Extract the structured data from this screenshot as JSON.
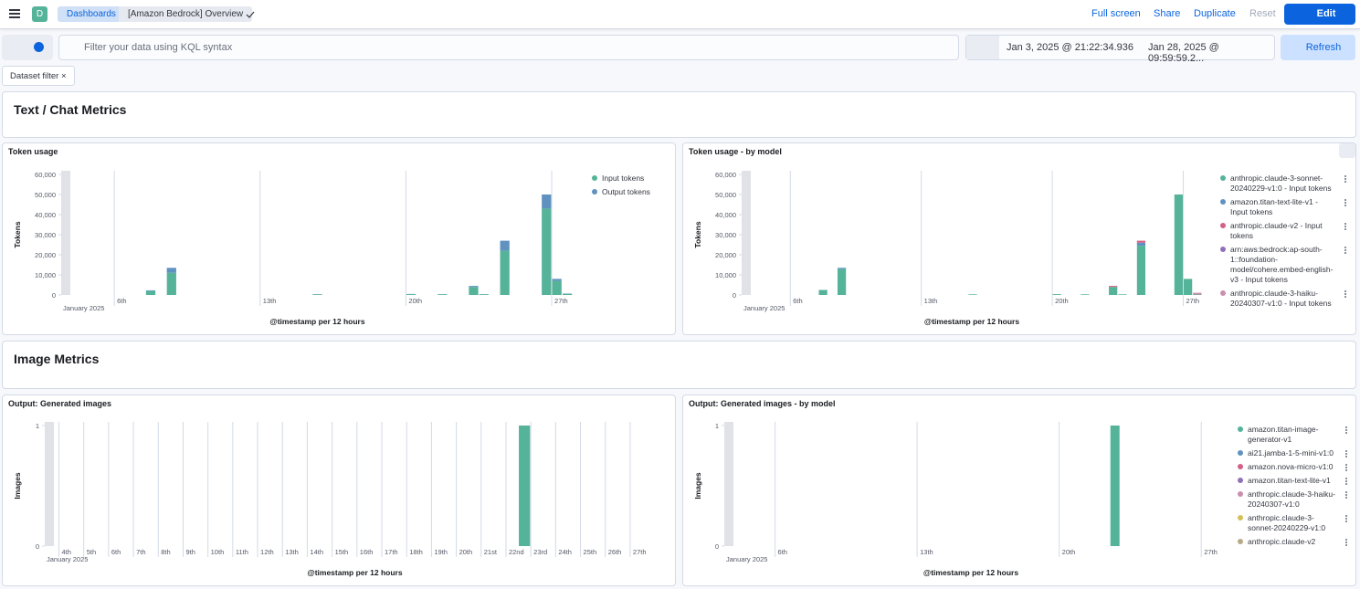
{
  "header": {
    "logo": "D",
    "breadcrumbs": [
      "Dashboards",
      "[Amazon Bedrock] Overview"
    ],
    "actions": [
      "Full screen",
      "Share",
      "Duplicate",
      "Reset"
    ],
    "edit": "Edit"
  },
  "query": {
    "placeholder": "Filter your data using KQL syntax",
    "start": "Jan 3, 2025 @ 21:22:34.936",
    "end": "Jan 28, 2025 @ 09:59:59.2...",
    "refresh": "Refresh",
    "filter": "Dataset filter"
  },
  "sections": [
    "Text / Chat Metrics",
    "Image Metrics"
  ],
  "chart_data": [
    {
      "type": "bar",
      "stacked": true,
      "title": "Token usage",
      "y_label": "Tokens",
      "x_label": "@timestamp per 12 hours",
      "x_sublabel": "January 2025",
      "x": [
        7.5,
        8.5,
        15.5,
        20,
        21.5,
        23,
        23.5,
        24.5,
        26.5,
        27,
        27.5
      ],
      "series": [
        {
          "name": "Input tokens",
          "color": "#54b399",
          "values": [
            2000,
            11000,
            300,
            400,
            300,
            4000,
            300,
            22000,
            43000,
            7000,
            500
          ]
        },
        {
          "name": "Output tokens",
          "color": "#6092c0",
          "values": [
            300,
            2500,
            100,
            100,
            100,
            500,
            100,
            5000,
            7000,
            1000,
            200
          ]
        }
      ],
      "xlim": [
        3.45,
        28.05
      ],
      "xticks": [
        {
          "value": 6,
          "label": "6th"
        },
        {
          "value": 13,
          "label": "13th"
        },
        {
          "value": 20,
          "label": "20th"
        },
        {
          "value": 27,
          "label": "27th"
        }
      ],
      "ylim": [
        0,
        60000
      ],
      "yticks": [
        0,
        {
          "value": 10000,
          "label": "10,000"
        },
        {
          "value": 20000,
          "label": "20,000"
        },
        {
          "value": 30000,
          "label": "30,000"
        },
        {
          "value": 40000,
          "label": "40,000"
        },
        {
          "value": 50000,
          "label": "50,000"
        },
        {
          "value": 60000,
          "label": "60,000"
        }
      ],
      "legend": "right"
    },
    {
      "type": "bar",
      "stacked": true,
      "title": "Token usage - by model",
      "y_label": "Tokens",
      "x_label": "@timestamp per 12 hours",
      "x_sublabel": "January 2025",
      "x": [
        7.5,
        8.5,
        15.5,
        20,
        21.5,
        23,
        23.5,
        24.5,
        26.5,
        27,
        27.5
      ],
      "series": [
        {
          "name": "anthropic.claude-3-sonnet-20240229-v1:0 - Input tokens",
          "color": "#54b399",
          "values": [
            2500,
            13000,
            300,
            400,
            300,
            4000,
            300,
            24500,
            50000,
            8000,
            300
          ]
        },
        {
          "name": "amazon.titan-text-lite-v1 - Input tokens",
          "color": "#6092c0",
          "values": [
            0,
            500,
            0,
            0,
            0,
            0,
            0,
            1500,
            0,
            0,
            0
          ]
        },
        {
          "name": "anthropic.claude-v2 - Input tokens",
          "color": "#d36086",
          "values": [
            0,
            0,
            0,
            0,
            0,
            500,
            0,
            1000,
            0,
            0,
            300
          ]
        },
        {
          "name": "arn:aws:bedrock:ap-south-1::foundation-model/cohere.embed-english-v3 - Input tokens",
          "color": "#9170b8",
          "values": [
            0,
            0,
            0,
            0,
            0,
            0,
            0,
            0,
            0,
            0,
            0
          ]
        },
        {
          "name": "anthropic.claude-3-haiku-20240307-v1:0 - Input tokens",
          "color": "#ca8eae",
          "values": [
            0,
            0,
            0,
            0,
            0,
            0,
            0,
            0,
            0,
            0,
            500
          ]
        }
      ],
      "xlim": [
        3.4,
        28
      ],
      "xticks": [
        {
          "value": 6,
          "label": "6th"
        },
        {
          "value": 13,
          "label": "13th"
        },
        {
          "value": 20,
          "label": "20th"
        },
        {
          "value": 27,
          "label": "27th"
        }
      ],
      "ylim": [
        0,
        60000
      ],
      "yticks": [
        0,
        {
          "value": 10000,
          "label": "10,000"
        },
        {
          "value": 20000,
          "label": "20,000"
        },
        {
          "value": 30000,
          "label": "30,000"
        },
        {
          "value": 40000,
          "label": "40,000"
        },
        {
          "value": 50000,
          "label": "50,000"
        },
        {
          "value": 60000,
          "label": "60,000"
        }
      ],
      "legend": "right"
    },
    {
      "type": "bar",
      "title": "Output: Generated images",
      "y_label": "Images",
      "x_label": "@timestamp per 12 hours",
      "x_sublabel": "January 2025",
      "x": [
        22.5
      ],
      "values": [
        1
      ],
      "color": "#54b399",
      "xlim": [
        3.43,
        28.4
      ],
      "xticks": [
        {
          "value": 4,
          "label": "4th"
        },
        {
          "value": 5,
          "label": "5th"
        },
        {
          "value": 6,
          "label": "6th"
        },
        {
          "value": 7,
          "label": "7th"
        },
        {
          "value": 8,
          "label": "8th"
        },
        {
          "value": 9,
          "label": "9th"
        },
        {
          "value": 10,
          "label": "10th"
        },
        {
          "value": 11,
          "label": "11th"
        },
        {
          "value": 12,
          "label": "12th"
        },
        {
          "value": 13,
          "label": "13th"
        },
        {
          "value": 14,
          "label": "14th"
        },
        {
          "value": 15,
          "label": "15th"
        },
        {
          "value": 16,
          "label": "16th"
        },
        {
          "value": 17,
          "label": "17th"
        },
        {
          "value": 18,
          "label": "18th"
        },
        {
          "value": 19,
          "label": "19th"
        },
        {
          "value": 20,
          "label": "20th"
        },
        {
          "value": 21,
          "label": "21st"
        },
        {
          "value": 22,
          "label": "22nd"
        },
        {
          "value": 23,
          "label": "23rd"
        },
        {
          "value": 24,
          "label": "24th"
        },
        {
          "value": 25,
          "label": "25th"
        },
        {
          "value": 26,
          "label": "26th"
        },
        {
          "value": 27,
          "label": "27th"
        }
      ],
      "ylim": [
        0,
        1
      ],
      "yticks": [
        0,
        1
      ]
    },
    {
      "type": "bar",
      "stacked": true,
      "title": "Output: Generated images - by model",
      "y_label": "Images",
      "x_label": "@timestamp per 12 hours",
      "x_sublabel": "January 2025",
      "x": [
        22.5
      ],
      "series": [
        {
          "name": "amazon.titan-image-generator-v1",
          "color": "#54b399",
          "values": [
            1
          ]
        },
        {
          "name": "ai21.jamba-1-5-mini-v1:0",
          "color": "#6092c0",
          "values": [
            0
          ]
        },
        {
          "name": "amazon.nova-micro-v1:0",
          "color": "#d36086",
          "values": [
            0
          ]
        },
        {
          "name": "amazon.titan-text-lite-v1",
          "color": "#9170b8",
          "values": [
            0
          ]
        },
        {
          "name": "anthropic.claude-3-haiku-20240307-v1:0",
          "color": "#ca8eae",
          "values": [
            0
          ]
        },
        {
          "name": "anthropic.claude-3-sonnet-20240229-v1:0",
          "color": "#d6bf57",
          "values": [
            0
          ]
        },
        {
          "name": "anthropic.claude-v2",
          "color": "#b9a888",
          "values": [
            0
          ]
        }
      ],
      "xlim": [
        3.5,
        27.8
      ],
      "xticks": [
        {
          "value": 6,
          "label": "6th"
        },
        {
          "value": 13,
          "label": "13th"
        },
        {
          "value": 20,
          "label": "20th"
        },
        {
          "value": 27,
          "label": "27th"
        }
      ],
      "ylim": [
        0,
        1
      ],
      "yticks": [
        0,
        1
      ],
      "legend": "right"
    }
  ]
}
